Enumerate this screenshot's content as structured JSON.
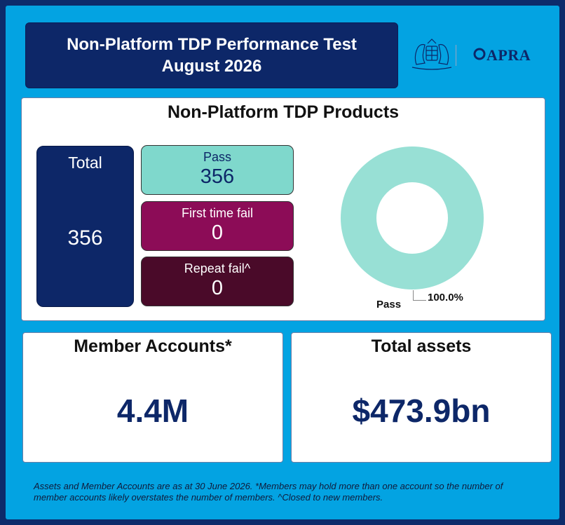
{
  "header": {
    "title_line1": "Non-Platform TDP Performance Test",
    "title_line2": "August 2026",
    "logo_crest": "coat-of-arms-icon",
    "logo_text": "APRA"
  },
  "products": {
    "title": "Non-Platform TDP Products",
    "total_label": "Total",
    "total_value": "356",
    "pass_label": "Pass",
    "pass_value": "356",
    "first_fail_label": "First time fail",
    "first_fail_value": "0",
    "repeat_fail_label": "Repeat fail^",
    "repeat_fail_value": "0"
  },
  "chart_data": {
    "type": "pie",
    "categories": [
      "Pass"
    ],
    "values": [
      100.0
    ],
    "data_labels": [
      "100.0%"
    ],
    "colors": [
      "#98e0d5"
    ]
  },
  "members": {
    "title": "Member Accounts*",
    "value": "4.4M"
  },
  "assets": {
    "title": "Total assets",
    "value": "$473.9bn"
  },
  "footnote": "Assets and Member Accounts are as at 30 June 2026. *Members may hold more than one account so the number of member accounts likely overstates the number of members. ^Closed to new members.",
  "colors": {
    "background": "#03a3e2",
    "navy": "#0d2768",
    "pass": "#7fd8cc",
    "first_fail": "#8c0c57",
    "repeat_fail": "#4a0a29"
  }
}
